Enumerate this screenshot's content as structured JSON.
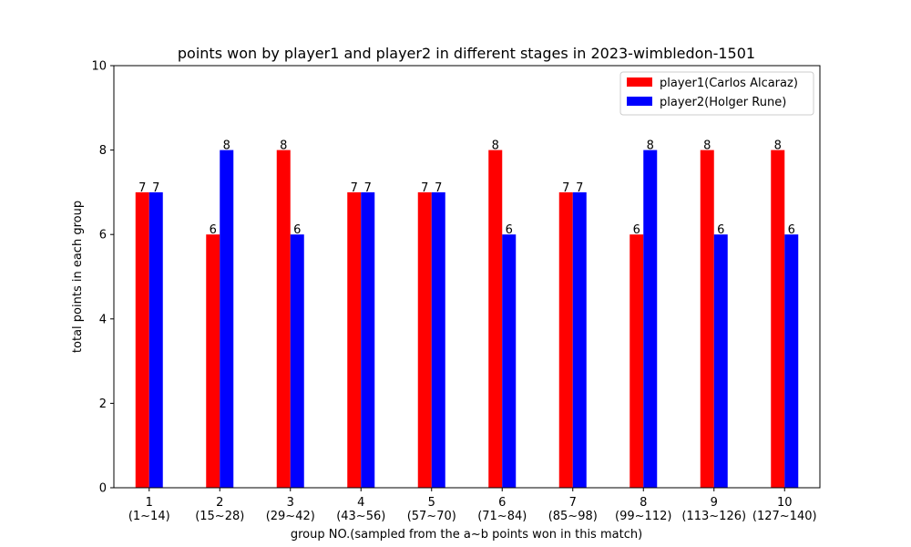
{
  "chart_data": {
    "type": "bar",
    "title": "points won by player1 and player2 in different stages in 2023-wimbledon-1501",
    "xlabel": "group NO.(sampled from the a~b points won in this match)",
    "ylabel": "total points in each group",
    "categories": [
      "1",
      "2",
      "3",
      "4",
      "5",
      "6",
      "7",
      "8",
      "9",
      "10"
    ],
    "category_sublabels": [
      "(1~14)",
      "(15~28)",
      "(29~42)",
      "(43~56)",
      "(57~70)",
      "(71~84)",
      "(85~98)",
      "(99~112)",
      "(113~126)",
      "(127~140)"
    ],
    "series": [
      {
        "name": "player1(Carlos Alcaraz)",
        "color": "#ff0000",
        "values": [
          7,
          6,
          8,
          7,
          7,
          8,
          7,
          6,
          8,
          8
        ]
      },
      {
        "name": "player2(Holger Rune)",
        "color": "#0000ff",
        "values": [
          7,
          8,
          6,
          7,
          7,
          6,
          7,
          8,
          6,
          6
        ]
      }
    ],
    "ylim": [
      0,
      10
    ],
    "yticks": [
      0,
      2,
      4,
      6,
      8,
      10
    ],
    "grid": false,
    "legend_position": "top-right",
    "data_labels": true
  }
}
